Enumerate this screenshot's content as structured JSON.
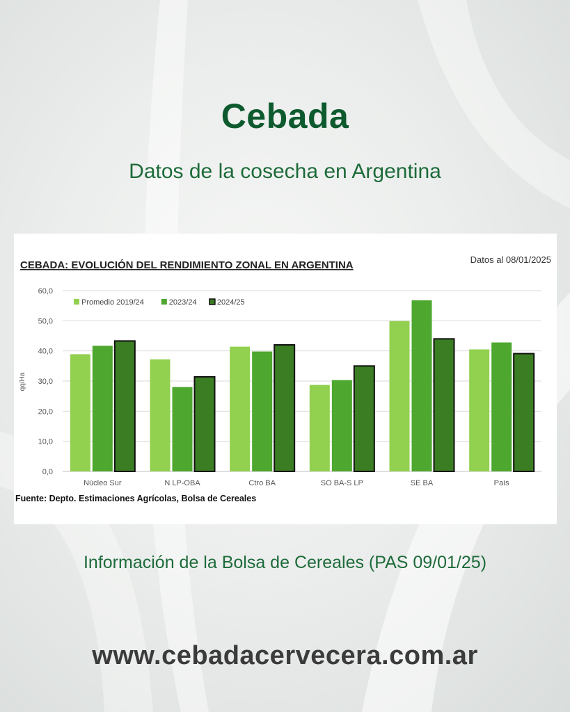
{
  "header": {
    "title": "Cebada",
    "subtitle": "Datos de la cosecha en Argentina"
  },
  "footer": {
    "info": "Información de la Bolsa de Cereales (PAS 09/01/25)",
    "website": "www.cebadacervecera.com.ar"
  },
  "chart_data": {
    "type": "bar",
    "title": "CEBADA: EVOLUCIÓN DEL RENDIMIENTO ZONAL EN ARGENTINA",
    "date_note": "Datos al 08/01/2025",
    "source": "Fuente: Depto. Estimaciones Agrícolas, Bolsa de Cereales",
    "xlabel": "",
    "ylabel": "qq/Ha",
    "ylim": [
      0,
      60
    ],
    "yticks": [
      "0,0",
      "10,0",
      "20,0",
      "30,0",
      "40,0",
      "50,0",
      "60,0"
    ],
    "grid": true,
    "legend_position": "top-left",
    "categories": [
      "Núcleo Sur",
      "N LP-OBA",
      "Ctro BA",
      "SO BA-S LP",
      "SE BA",
      "País"
    ],
    "series": [
      {
        "name": "Promedio 2019/24",
        "color": "#92d050",
        "outlined": false,
        "values": [
          38.9,
          37.2,
          41.4,
          28.7,
          49.9,
          40.5
        ]
      },
      {
        "name": "2023/24",
        "color": "#4ea72e",
        "outlined": false,
        "values": [
          41.7,
          28.0,
          39.8,
          30.3,
          56.8,
          42.8
        ]
      },
      {
        "name": "2024/25",
        "color": "#3b7d23",
        "outlined": true,
        "values": [
          43.3,
          31.4,
          42.0,
          35.0,
          44.0,
          39.1
        ]
      }
    ]
  }
}
